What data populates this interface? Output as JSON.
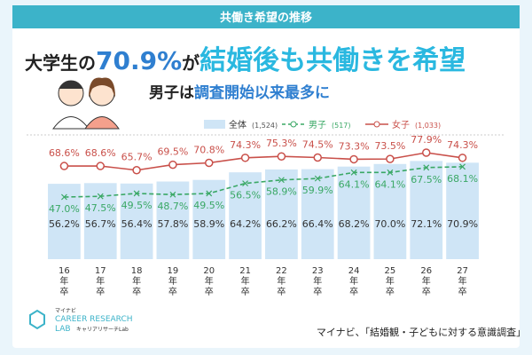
{
  "header": {
    "title": "共働き希望の推移"
  },
  "headline": {
    "part1": "大学生の",
    "highlight": "70.9%",
    "part2": "が",
    "emphasis": "結婚後も共働きを希望"
  },
  "subheadline": {
    "part1": "男子は",
    "part2": "調査開始以来最多に"
  },
  "chart_data": {
    "type": "bar_line",
    "categories": [
      "16年卒",
      "17年卒",
      "18年卒",
      "19年卒",
      "20年卒",
      "21年卒",
      "22年卒",
      "23年卒",
      "24年卒",
      "25年卒",
      "26年卒",
      "27年卒"
    ],
    "series": [
      {
        "name": "全体",
        "sample": "(1,524)",
        "type": "bar",
        "color": "#cfe5f6",
        "values": [
          56.2,
          56.7,
          56.4,
          57.8,
          58.9,
          64.2,
          66.2,
          66.4,
          68.2,
          70.0,
          72.1,
          70.9
        ],
        "value_labels": [
          "56.2%",
          "56.7%",
          "56.4%",
          "57.8%",
          "58.9%",
          "64.2%",
          "66.2%",
          "66.4%",
          "68.2%",
          "70.0%",
          "72.1%",
          "70.9%"
        ]
      },
      {
        "name": "男子",
        "sample": "(517)",
        "type": "line",
        "dashed": true,
        "color": "#3aa865",
        "values": [
          47.0,
          47.5,
          49.5,
          48.7,
          49.5,
          56.5,
          58.9,
          59.9,
          64.1,
          64.1,
          67.5,
          68.1
        ],
        "value_labels": [
          "47.0%",
          "47.5%",
          "49.5%",
          "48.7%",
          "49.5%",
          "56.5%",
          "58.9%",
          "59.9%",
          "64.1%",
          "64.1%",
          "67.5%",
          "68.1%"
        ]
      },
      {
        "name": "女子",
        "sample": "(1,033)",
        "type": "line",
        "dashed": false,
        "color": "#c9504a",
        "values": [
          68.6,
          68.6,
          65.7,
          69.5,
          70.8,
          74.3,
          75.3,
          74.5,
          73.3,
          73.5,
          77.9,
          74.3
        ],
        "value_labels": [
          "68.6%",
          "68.6%",
          "65.7%",
          "69.5%",
          "70.8%",
          "74.3%",
          "75.3%",
          "74.5%",
          "73.3%",
          "73.5%",
          "77.9%",
          "74.3%"
        ]
      }
    ]
  },
  "footer": {
    "logo_top": "マイナビ",
    "logo_main": "CAREER RESEARCH",
    "logo_lab": "LAB",
    "logo_sub": "キャリアリサーチLab",
    "source": "マイナビ、「結婚観・子どもに対する意識調査」"
  }
}
